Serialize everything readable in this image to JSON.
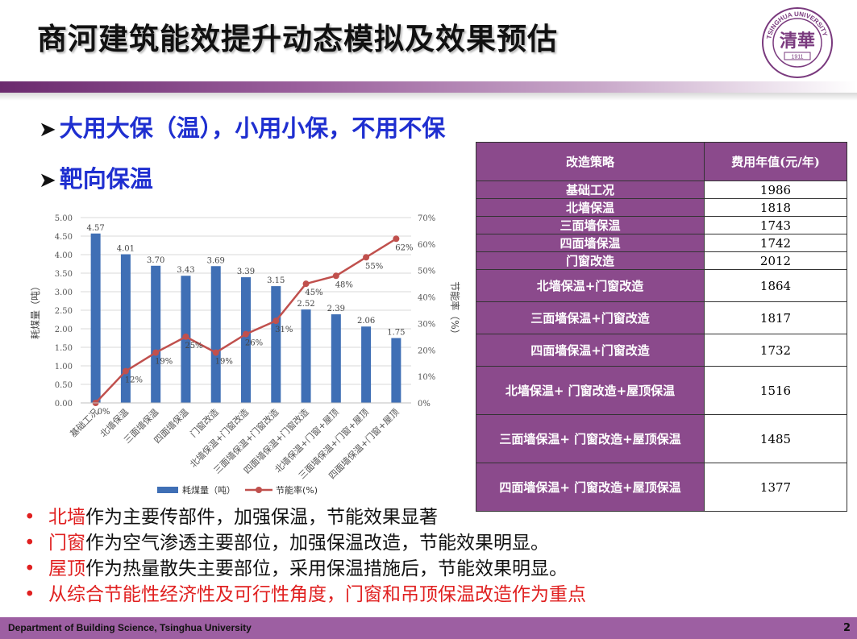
{
  "title": "商河建筑能效提升动态模拟及效果预估",
  "logo": {
    "year": "1911",
    "ring_text": "TSINGHUA UNIVERSITY"
  },
  "bullets": [
    "大用大保（温），小用小保，不用不保",
    "靶向保温"
  ],
  "chart_data": {
    "type": "bar+line",
    "categories": [
      "基础工况",
      "北墙保温",
      "三面墙保温",
      "四面墙保温",
      "门窗改造",
      "北墙保温+门窗改造",
      "三面墙保温+门窗改造",
      "四面墙保温+门窗改造",
      "北墙保温+门窗+屋顶",
      "三面墙保温+门窗+屋顶",
      "四面墙保温+门窗+屋顶"
    ],
    "series": [
      {
        "name": "耗煤量（吨）",
        "type": "bar",
        "axis": "left",
        "color": "#3f6fb5",
        "values": [
          4.57,
          4.01,
          3.7,
          3.43,
          3.69,
          3.39,
          3.15,
          2.52,
          2.39,
          2.06,
          1.75
        ],
        "labels": [
          "4.57",
          "4.01",
          "3.70",
          "3.43",
          "3.69",
          "3.39",
          "3.15",
          "2.52",
          "2.39",
          "2.06",
          "1.75"
        ]
      },
      {
        "name": "节能率(%)",
        "type": "line",
        "axis": "right",
        "color": "#c0504d",
        "values": [
          0,
          12,
          19,
          25,
          19,
          26,
          31,
          45,
          48,
          55,
          62
        ],
        "labels": [
          "0%",
          "12%",
          "19%",
          "25%",
          "19%",
          "26%",
          "31%",
          "45%",
          "48%",
          "55%",
          "62%"
        ]
      }
    ],
    "ylabel_left": "耗煤量（吨）",
    "ylabel_right": "节能率（%）",
    "ylim_left": [
      0,
      5
    ],
    "ylim_right": [
      0,
      70
    ],
    "yticks_left": [
      "0.00",
      "0.50",
      "1.00",
      "1.50",
      "2.00",
      "2.50",
      "3.00",
      "3.50",
      "4.00",
      "4.50",
      "5.00"
    ],
    "yticks_right": [
      "0%",
      "10%",
      "20%",
      "30%",
      "40%",
      "50%",
      "60%",
      "70%"
    ],
    "legend_position": "bottom",
    "grid": true
  },
  "table": {
    "headers": [
      "改造策略",
      "费用年值(元/年)"
    ],
    "rows": [
      {
        "strategy": "基础工况",
        "cost": "1986"
      },
      {
        "strategy": "北墙保温",
        "cost": "1818"
      },
      {
        "strategy": "三面墙保温",
        "cost": "1743"
      },
      {
        "strategy": "四面墙保温",
        "cost": "1742"
      },
      {
        "strategy": "门窗改造",
        "cost": "2012"
      },
      {
        "strategy": "北墙保温+门窗改造",
        "cost": "1864"
      },
      {
        "strategy": "三面墙保温+门窗改造",
        "cost": "1817"
      },
      {
        "strategy": "四面墙保温+门窗改造",
        "cost": "1732"
      },
      {
        "strategy": "北墙保温+ 门窗改造+屋顶保温",
        "cost": "1516"
      },
      {
        "strategy": "三面墙保温+ 门窗改造+屋顶保温",
        "cost": "1485"
      },
      {
        "strategy": "四面墙保温+ 门窗改造+屋顶保温",
        "cost": "1377"
      }
    ]
  },
  "notes": [
    {
      "highlight": "北墙",
      "rest": "作为主要传部件，加强保温，节能效果显著"
    },
    {
      "highlight": "门窗",
      "rest": "作为空气渗透主要部位，加强保温改造，节能效果明显。"
    },
    {
      "highlight": "屋顶",
      "rest": "作为热量散失主要部位，采用保温措施后，节能效果明显。"
    },
    {
      "highlight": "从综合节能性经济性及可行性角度，门窗和吊顶保温改造作为重点",
      "rest": ""
    }
  ],
  "footer": {
    "department": "Department of Building Science, Tsinghua University",
    "page": "2"
  }
}
